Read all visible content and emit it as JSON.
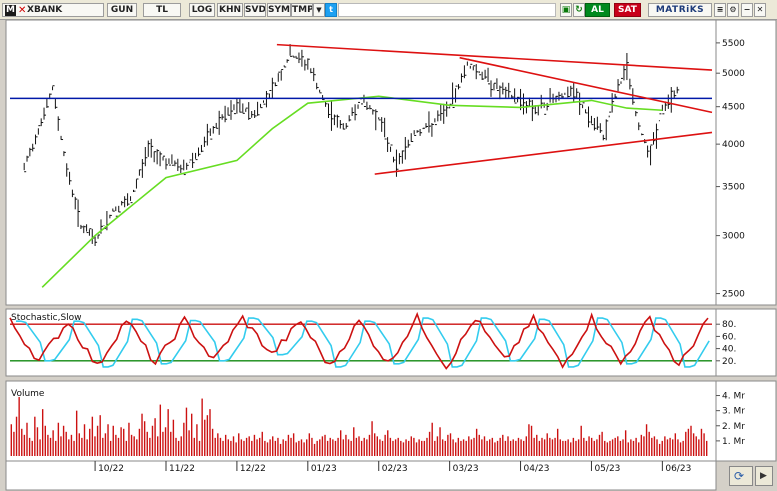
{
  "toolbar": {
    "symbol": "XBANK",
    "logo_letter": "M",
    "buttons": [
      "GUN",
      "TL",
      "LOG",
      "KHN",
      "SVD",
      "SYM",
      "TMP"
    ],
    "buy_label": "AL",
    "sell_label": "SAT",
    "brand": "MATRiKS"
  },
  "colors": {
    "price_bars": "#111111",
    "moving_average": "#66dd22",
    "support_resistance": "#0018a8",
    "trendlines": "#dd1111",
    "stoch_k": "#cc1111",
    "stoch_d": "#33ccee",
    "stoch_levels_upper": "#cc1111",
    "stoch_levels_lower": "#118811",
    "volume": "#cc1111",
    "panel_bg": "#ffffff"
  },
  "chart_data": [
    {
      "type": "line",
      "panel": "price",
      "description_series": [
        "ohlc-bars",
        "moving-average",
        "horizontal-level",
        "trendlines"
      ],
      "x": [
        "10/22",
        "11/22",
        "12/22",
        "01/23",
        "02/23",
        "03/23",
        "04/23",
        "05/23",
        "06/23"
      ],
      "y_ticks": [
        2500,
        3000,
        3500,
        4000,
        4500,
        5000,
        5500
      ],
      "ylim": [
        2450,
        5800
      ],
      "y_scale": "log",
      "horizontal_level": 4620,
      "price_path": [
        {
          "t": "09/22",
          "v": 3700
        },
        {
          "t": "09/22",
          "v": 4200
        },
        {
          "t": "09/22",
          "v": 4750
        },
        {
          "t": "09/22",
          "v": 3700
        },
        {
          "t": "09/22",
          "v": 3100
        },
        {
          "t": "10/22",
          "v": 2950
        },
        {
          "t": "10/22",
          "v": 3250
        },
        {
          "t": "10/22",
          "v": 3350
        },
        {
          "t": "10/22",
          "v": 3950
        },
        {
          "t": "11/22",
          "v": 3800
        },
        {
          "t": "11/22",
          "v": 3700
        },
        {
          "t": "11/22",
          "v": 3950
        },
        {
          "t": "11/22",
          "v": 4300
        },
        {
          "t": "12/22",
          "v": 4500
        },
        {
          "t": "12/22",
          "v": 4400
        },
        {
          "t": "12/22",
          "v": 4750
        },
        {
          "t": "12/22",
          "v": 5300
        },
        {
          "t": "01/23",
          "v": 5150
        },
        {
          "t": "01/23",
          "v": 4500
        },
        {
          "t": "01/23",
          "v": 4200
        },
        {
          "t": "01/23",
          "v": 4600
        },
        {
          "t": "02/23",
          "v": 4350
        },
        {
          "t": "02/23",
          "v": 3750
        },
        {
          "t": "02/23",
          "v": 4150
        },
        {
          "t": "02/23",
          "v": 4250
        },
        {
          "t": "03/23",
          "v": 4500
        },
        {
          "t": "03/23",
          "v": 5150
        },
        {
          "t": "03/23",
          "v": 4950
        },
        {
          "t": "03/23",
          "v": 4700
        },
        {
          "t": "04/23",
          "v": 4600
        },
        {
          "t": "04/23",
          "v": 4450
        },
        {
          "t": "04/23",
          "v": 4650
        },
        {
          "t": "04/23",
          "v": 4700
        },
        {
          "t": "05/23",
          "v": 4300
        },
        {
          "t": "05/23",
          "v": 4100
        },
        {
          "t": "05/23",
          "v": 4650
        },
        {
          "t": "05/23",
          "v": 5100
        },
        {
          "t": "05/23",
          "v": 4200
        },
        {
          "t": "05/23",
          "v": 3900
        },
        {
          "t": "06/23",
          "v": 4450
        },
        {
          "t": "06/23",
          "v": 4800
        }
      ],
      "moving_average_path": [
        {
          "t": "09/22",
          "v": 2550
        },
        {
          "t": "10/22",
          "v": 3000
        },
        {
          "t": "11/22",
          "v": 3600
        },
        {
          "t": "12/22",
          "v": 3800
        },
        {
          "t": "12/22",
          "v": 4200
        },
        {
          "t": "01/23",
          "v": 4550
        },
        {
          "t": "02/23",
          "v": 4650
        },
        {
          "t": "03/23",
          "v": 4520
        },
        {
          "t": "04/23",
          "v": 4490
        },
        {
          "t": "05/23",
          "v": 4590
        },
        {
          "t": "05/23",
          "v": 4480
        },
        {
          "t": "06/23",
          "v": 4450
        }
      ]
    },
    {
      "type": "line",
      "panel": "oscillator",
      "title": "Stochastic,Slow",
      "y_ticks": [
        20,
        40,
        60,
        80
      ],
      "ylim": [
        0,
        100
      ],
      "levels": [
        20,
        80
      ],
      "k_cycle_values": [
        85,
        20,
        85,
        10,
        88,
        15,
        86,
        20,
        90,
        30,
        85,
        10,
        85,
        15,
        90,
        10,
        90,
        20,
        88,
        10,
        90,
        15,
        90,
        10,
        90
      ]
    },
    {
      "type": "bar",
      "panel": "volume",
      "title": "Volume",
      "y_tick_labels": [
        "1. Mr",
        "2. Mr",
        "3. Mr",
        "4. Mr"
      ],
      "y_ticks": [
        1,
        2,
        3,
        4
      ],
      "ylim": [
        0,
        4.3
      ],
      "unit": "Mr",
      "values": [
        2.1,
        1.6,
        2.6,
        3.9,
        1.8,
        1.4,
        2.2,
        1.2,
        1.0,
        2.6,
        1.9,
        1.1,
        3.1,
        2.0,
        1.4,
        1.2,
        1.7,
        1.0,
        2.2,
        1.3,
        2.0,
        1.6,
        1.1,
        1.4,
        1.0,
        3.0,
        1.5,
        1.2,
        2.1,
        1.1,
        1.8,
        2.6,
        1.3,
        2.0,
        2.7,
        1.2,
        1.5,
        2.1,
        1.0,
        2.0,
        1.4,
        1.2,
        1.9,
        1.8,
        1.0,
        2.2,
        1.4,
        1.3,
        1.1,
        1.8,
        2.8,
        2.3,
        1.6,
        1.2,
        2.0,
        2.5,
        1.3,
        3.4,
        1.6,
        1.9,
        3.1,
        1.6,
        2.4,
        1.2,
        1.0,
        1.3,
        2.2,
        3.2,
        1.7,
        2.8,
        1.2,
        2.1,
        1.0,
        3.8,
        2.4,
        2.7,
        3.1,
        1.8,
        1.2,
        1.5,
        1.2,
        1.0,
        1.4,
        1.1,
        1.0,
        1.3,
        0.9,
        1.5,
        1.1,
        1.0,
        1.2,
        1.3,
        1.0,
        1.4,
        1.1,
        1.2,
        1.6,
        1.0,
        0.9,
        1.1,
        1.3,
        1.0,
        1.2,
        0.8,
        1.1,
        1.0,
        1.4,
        1.2,
        1.5,
        0.9,
        1.0,
        1.1,
        0.9,
        1.1,
        1.5,
        1.2,
        0.8,
        1.0,
        1.1,
        1.3,
        1.4,
        1.0,
        1.2,
        1.1,
        1.0,
        1.2,
        1.7,
        1.1,
        1.4,
        1.1,
        1.0,
        1.9,
        1.2,
        1.3,
        1.0,
        1.2,
        1.1,
        1.4,
        2.3,
        1.5,
        1.3,
        1.1,
        1.0,
        1.4,
        1.7,
        1.2,
        1.0,
        1.1,
        1.2,
        1.0,
        0.9,
        1.1,
        1.0,
        1.3,
        1.2,
        0.9,
        1.1,
        1.0,
        1.0,
        1.2,
        1.6,
        2.2,
        1.0,
        1.3,
        1.9,
        1.1,
        1.0,
        1.4,
        1.5,
        1.1,
        0.9,
        1.2,
        1.0,
        1.1,
        1.0,
        1.3,
        1.1,
        1.2,
        1.8,
        1.4,
        1.1,
        1.3,
        1.0,
        1.1,
        1.2,
        0.9,
        1.0,
        1.2,
        1.4,
        1.0,
        1.3,
        1.0,
        1.1,
        1.0,
        1.2,
        1.1,
        1.0,
        1.3,
        2.1,
        2.0,
        1.2,
        1.4,
        1.0,
        1.2,
        1.1,
        1.5,
        1.2,
        1.1,
        1.2,
        1.8,
        1.1,
        1.0,
        1.0,
        1.1,
        0.9,
        1.2,
        1.0,
        1.1,
        2.0,
        1.2,
        1.0,
        1.3,
        1.2,
        1.0,
        1.1,
        1.4,
        1.6,
        1.0,
        0.9,
        1.0,
        1.1,
        1.2,
        1.3,
        1.0,
        1.1,
        1.7,
        0.9,
        1.1,
        1.0,
        1.2,
        0.9,
        1.4,
        1.3,
        2.1,
        1.6,
        1.2,
        1.3,
        1.1,
        0.8,
        1.0,
        1.3,
        1.1,
        1.2,
        1.1,
        1.5,
        1.1,
        0.9,
        1.0,
        1.6,
        1.8,
        2.0,
        1.5,
        1.3,
        1.1,
        1.8,
        1.5,
        1.0
      ]
    }
  ],
  "x_axis": {
    "labels": [
      "10/22",
      "11/22",
      "12/22",
      "01/23",
      "02/23",
      "03/23",
      "04/23",
      "05/23",
      "06/23"
    ]
  }
}
